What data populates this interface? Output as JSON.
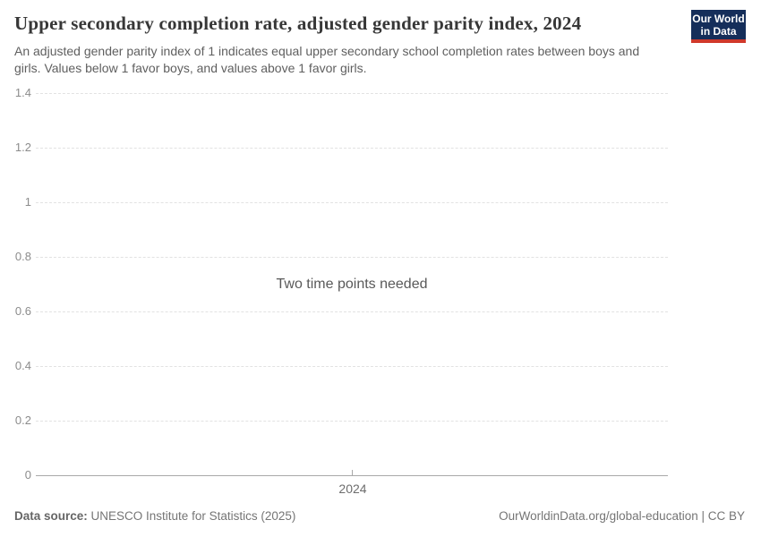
{
  "header": {
    "title": "Upper secondary completion rate, adjusted gender parity index, 2024",
    "subtitle": "An adjusted gender parity index of 1 indicates equal upper secondary school completion rates between boys and girls. Values below 1 favor boys, and values above 1 favor girls.",
    "logo": {
      "line1": "Our World",
      "line2": "in Data"
    }
  },
  "chart_data": {
    "type": "line",
    "title": "Upper secondary completion rate, adjusted gender parity index, 2024",
    "series": [],
    "x_ticks": [
      "2024"
    ],
    "y_tick_labels": [
      "1.4",
      "1.2",
      "1",
      "0.8",
      "0.6",
      "0.4",
      "0.2",
      "0"
    ],
    "ylim": [
      0,
      1.4
    ],
    "grid": "horizontal-dashed",
    "legend": "none",
    "empty_message": "Two time points needed"
  },
  "footer": {
    "source_label": "Data source:",
    "source_text": " UNESCO Institute for Statistics (2025)",
    "credit": "OurWorldinData.org/global-education | CC BY"
  },
  "colors": {
    "logo_bg": "#152e5a",
    "logo_bar": "#d0392b",
    "grid_line": "#e2e2e2",
    "axis_line": "#a8a8a8",
    "title_text": "#373737",
    "subtitle_text": "#5f5f5f",
    "tick_text": "#8c8c8c",
    "x_tick_text": "#6d6d6d",
    "message_text": "#595959",
    "footer_text": "#757575"
  }
}
